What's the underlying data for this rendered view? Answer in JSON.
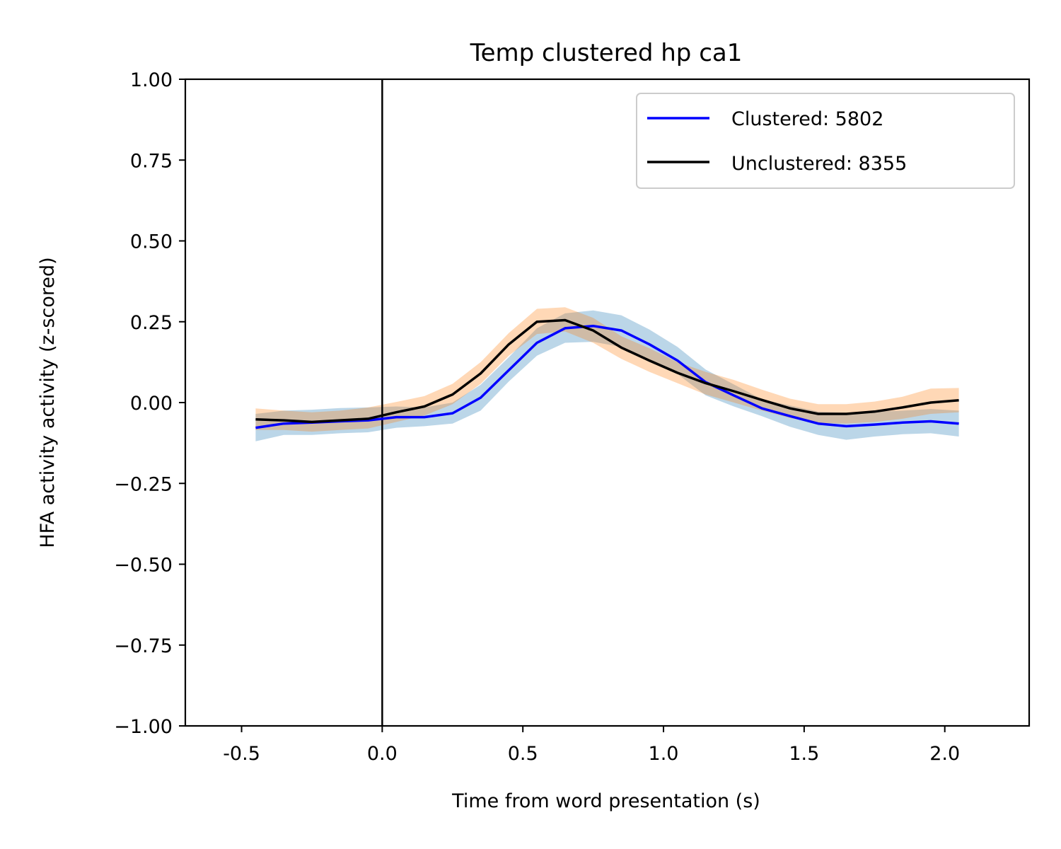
{
  "chart_data": {
    "type": "line",
    "title": "Temp clustered hp ca1",
    "xlabel": "Time from word presentation (s)",
    "ylabel": "HFA activity activity (z-scored)",
    "xlim": [
      -0.7,
      2.3
    ],
    "ylim": [
      -1.0,
      1.0
    ],
    "xticks": [
      -0.5,
      0.0,
      0.5,
      1.0,
      1.5,
      2.0
    ],
    "xtick_labels": [
      "-0.5",
      "0.0",
      "0.5",
      "1.0",
      "1.5",
      "2.0"
    ],
    "yticks": [
      1.0,
      0.75,
      0.5,
      0.25,
      0.0,
      -0.25,
      -0.5,
      -0.75,
      -1.0
    ],
    "ytick_labels": [
      "1.00",
      "0.75",
      "0.50",
      "0.25",
      "0.00",
      "−0.25",
      "−0.50",
      "−0.75",
      "−1.00"
    ],
    "vline_x": 0.0,
    "grid": false,
    "legend_position": "top-right",
    "x": [
      -0.45,
      -0.35,
      -0.25,
      -0.15,
      -0.05,
      0.05,
      0.15,
      0.25,
      0.35,
      0.45,
      0.55,
      0.65,
      0.75,
      0.85,
      0.95,
      1.05,
      1.15,
      1.25,
      1.35,
      1.45,
      1.55,
      1.65,
      1.75,
      1.85,
      1.95,
      2.05
    ],
    "series": [
      {
        "name": "Clustered: 5802",
        "color": "#0000ff",
        "band_color": "#1f77b4",
        "values": [
          -0.078,
          -0.065,
          -0.062,
          -0.058,
          -0.055,
          -0.045,
          -0.045,
          -0.033,
          0.015,
          0.1,
          0.185,
          0.23,
          0.237,
          0.223,
          0.18,
          0.13,
          0.063,
          0.022,
          -0.018,
          -0.042,
          -0.065,
          -0.073,
          -0.068,
          -0.062,
          -0.058,
          -0.065
        ],
        "lower": [
          -0.12,
          -0.1,
          -0.1,
          -0.095,
          -0.092,
          -0.078,
          -0.073,
          -0.065,
          -0.025,
          0.065,
          0.145,
          0.185,
          0.188,
          0.172,
          0.135,
          0.088,
          0.022,
          -0.012,
          -0.042,
          -0.075,
          -0.1,
          -0.115,
          -0.105,
          -0.098,
          -0.095,
          -0.105
        ],
        "upper": [
          -0.035,
          -0.025,
          -0.022,
          -0.017,
          -0.015,
          -0.012,
          -0.015,
          0.0,
          0.055,
          0.14,
          0.23,
          0.276,
          0.285,
          0.27,
          0.226,
          0.172,
          0.102,
          0.056,
          0.01,
          -0.009,
          -0.028,
          -0.031,
          -0.028,
          -0.025,
          -0.02,
          -0.025
        ]
      },
      {
        "name": "Unclustered: 8355",
        "color": "#000000",
        "band_color": "#ff7f0e",
        "values": [
          -0.052,
          -0.055,
          -0.06,
          -0.055,
          -0.05,
          -0.03,
          -0.012,
          0.025,
          0.09,
          0.18,
          0.25,
          0.255,
          0.223,
          0.17,
          0.13,
          0.092,
          0.06,
          0.035,
          0.008,
          -0.018,
          -0.035,
          -0.035,
          -0.028,
          -0.015,
          0.0,
          0.007
        ],
        "lower": [
          -0.085,
          -0.085,
          -0.09,
          -0.085,
          -0.08,
          -0.06,
          -0.04,
          -0.005,
          0.058,
          0.145,
          0.212,
          0.22,
          0.185,
          0.135,
          0.095,
          0.06,
          0.025,
          0.0,
          -0.025,
          -0.048,
          -0.063,
          -0.065,
          -0.06,
          -0.05,
          -0.035,
          -0.03
        ],
        "upper": [
          -0.018,
          -0.025,
          -0.03,
          -0.025,
          -0.015,
          0.002,
          0.02,
          0.058,
          0.125,
          0.215,
          0.29,
          0.295,
          0.262,
          0.205,
          0.168,
          0.125,
          0.095,
          0.07,
          0.04,
          0.012,
          -0.005,
          -0.005,
          0.003,
          0.018,
          0.043,
          0.045
        ]
      }
    ]
  }
}
